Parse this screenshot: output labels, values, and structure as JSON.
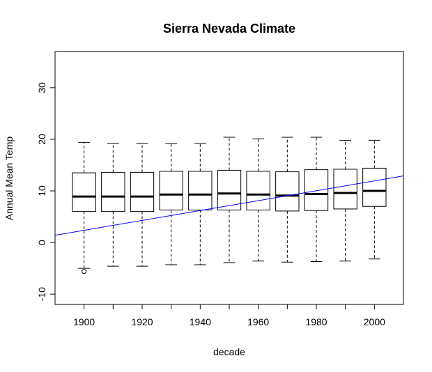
{
  "chart_data": {
    "type": "boxplot",
    "title": "Sierra Nevada Climate",
    "xlabel": "decade",
    "ylabel": "Annual Mean Temp",
    "xlim": [
      1890,
      2010
    ],
    "ylim": [
      -12,
      37
    ],
    "x_ticks": [
      "1900",
      "1920",
      "1940",
      "1960",
      "1980",
      "2000"
    ],
    "y_ticks": [
      "-10",
      "0",
      "10",
      "20",
      "30"
    ],
    "box_width_years": 8,
    "boxes": [
      {
        "x": 1900,
        "whisker_low": -5.0,
        "q1": 6.0,
        "median": 8.9,
        "q3": 13.5,
        "whisker_high": 19.4,
        "outliers": [
          -5.6
        ]
      },
      {
        "x": 1910,
        "whisker_low": -4.6,
        "q1": 6.0,
        "median": 8.9,
        "q3": 13.6,
        "whisker_high": 19.2,
        "outliers": []
      },
      {
        "x": 1920,
        "whisker_low": -4.6,
        "q1": 6.0,
        "median": 8.9,
        "q3": 13.6,
        "whisker_high": 19.2,
        "outliers": []
      },
      {
        "x": 1930,
        "whisker_low": -4.3,
        "q1": 6.3,
        "median": 9.3,
        "q3": 13.8,
        "whisker_high": 19.2,
        "outliers": []
      },
      {
        "x": 1940,
        "whisker_low": -4.3,
        "q1": 6.3,
        "median": 9.3,
        "q3": 13.8,
        "whisker_high": 19.2,
        "outliers": []
      },
      {
        "x": 1950,
        "whisker_low": -3.9,
        "q1": 6.3,
        "median": 9.5,
        "q3": 14.0,
        "whisker_high": 20.4,
        "outliers": []
      },
      {
        "x": 1960,
        "whisker_low": -3.6,
        "q1": 6.3,
        "median": 9.3,
        "q3": 13.8,
        "whisker_high": 20.1,
        "outliers": []
      },
      {
        "x": 1970,
        "whisker_low": -3.8,
        "q1": 6.1,
        "median": 9.1,
        "q3": 13.7,
        "whisker_high": 20.4,
        "outliers": []
      },
      {
        "x": 1980,
        "whisker_low": -3.7,
        "q1": 6.2,
        "median": 9.4,
        "q3": 14.1,
        "whisker_high": 20.4,
        "outliers": []
      },
      {
        "x": 1990,
        "whisker_low": -3.6,
        "q1": 6.5,
        "median": 9.6,
        "q3": 14.2,
        "whisker_high": 19.8,
        "outliers": []
      },
      {
        "x": 2000,
        "whisker_low": -3.2,
        "q1": 7.0,
        "median": 10.0,
        "q3": 14.4,
        "whisker_high": 19.8,
        "outliers": []
      }
    ],
    "trend_line": {
      "x": [
        1890,
        2010
      ],
      "y": [
        1.4,
        12.9
      ],
      "color": "#0000ff"
    },
    "grid": false,
    "colors": {
      "box": "#000000",
      "median": "#000000",
      "trend": "#0000ff",
      "background": "#ffffff"
    }
  }
}
